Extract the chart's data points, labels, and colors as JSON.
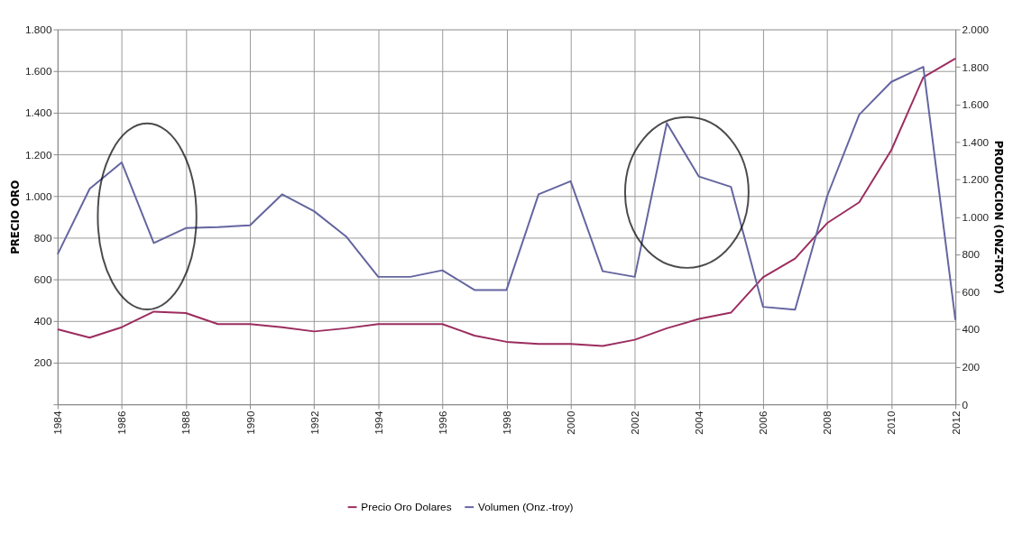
{
  "chart_data": {
    "type": "line",
    "ylabel": "PRECIO ORO",
    "y2label": "PRODUCCION (ONZ-TROY)",
    "x": [
      1984,
      1985,
      1986,
      1987,
      1988,
      1989,
      1990,
      1991,
      1992,
      1993,
      1994,
      1995,
      1996,
      1997,
      1998,
      1999,
      2000,
      2001,
      2002,
      2003,
      2004,
      2005,
      2006,
      2007,
      2008,
      2009,
      2010,
      2011,
      2012
    ],
    "xlim": [
      1984,
      2012
    ],
    "xticks": [
      1984,
      1986,
      1988,
      1990,
      1992,
      1994,
      1996,
      1998,
      2000,
      2002,
      2004,
      2006,
      2008,
      2010,
      2012
    ],
    "ylim": [
      0,
      1800
    ],
    "yticks": [
      {
        "value": 0,
        "label": null
      },
      200,
      400,
      600,
      800,
      {
        "value": 1000,
        "label": "1.000"
      },
      {
        "value": 1200,
        "label": "1.200"
      },
      {
        "value": 1400,
        "label": "1.400"
      },
      {
        "value": 1600,
        "label": "1.600"
      },
      {
        "value": 1800,
        "label": "1.800"
      }
    ],
    "y2lim": [
      0,
      2000
    ],
    "y2ticks": [
      0,
      200,
      400,
      600,
      800,
      {
        "value": 1000,
        "label": "1.000"
      },
      {
        "value": 1200,
        "label": "1.200"
      },
      {
        "value": 1400,
        "label": "1.400"
      },
      {
        "value": 1600,
        "label": "1.600"
      },
      {
        "value": 1800,
        "label": "1.800"
      },
      {
        "value": 2000,
        "label": "2.000"
      }
    ],
    "series": [
      {
        "name": "Precio Oro Dolares",
        "color": "#9b2d5f",
        "values": [
          360,
          320,
          370,
          445,
          438,
          385,
          385,
          370,
          350,
          365,
          385,
          385,
          385,
          330,
          300,
          290,
          290,
          280,
          310,
          365,
          410,
          440,
          610,
          700,
          870,
          970,
          1220,
          1570,
          1660
        ]
      },
      {
        "name": "Volumen (Onz.-troy)",
        "color": "#6464a0",
        "axis": "y2",
        "values": [
          800,
          1150,
          1290,
          860,
          940,
          945,
          955,
          1120,
          1030,
          895,
          680,
          680,
          715,
          610,
          610,
          1120,
          1190,
          710,
          680,
          1500,
          1215,
          1160,
          520,
          505,
          1110,
          1545,
          1720,
          1800,
          450
        ]
      }
    ],
    "grid": true,
    "legend": "bottom",
    "marker": "none",
    "line_style": "solid"
  }
}
